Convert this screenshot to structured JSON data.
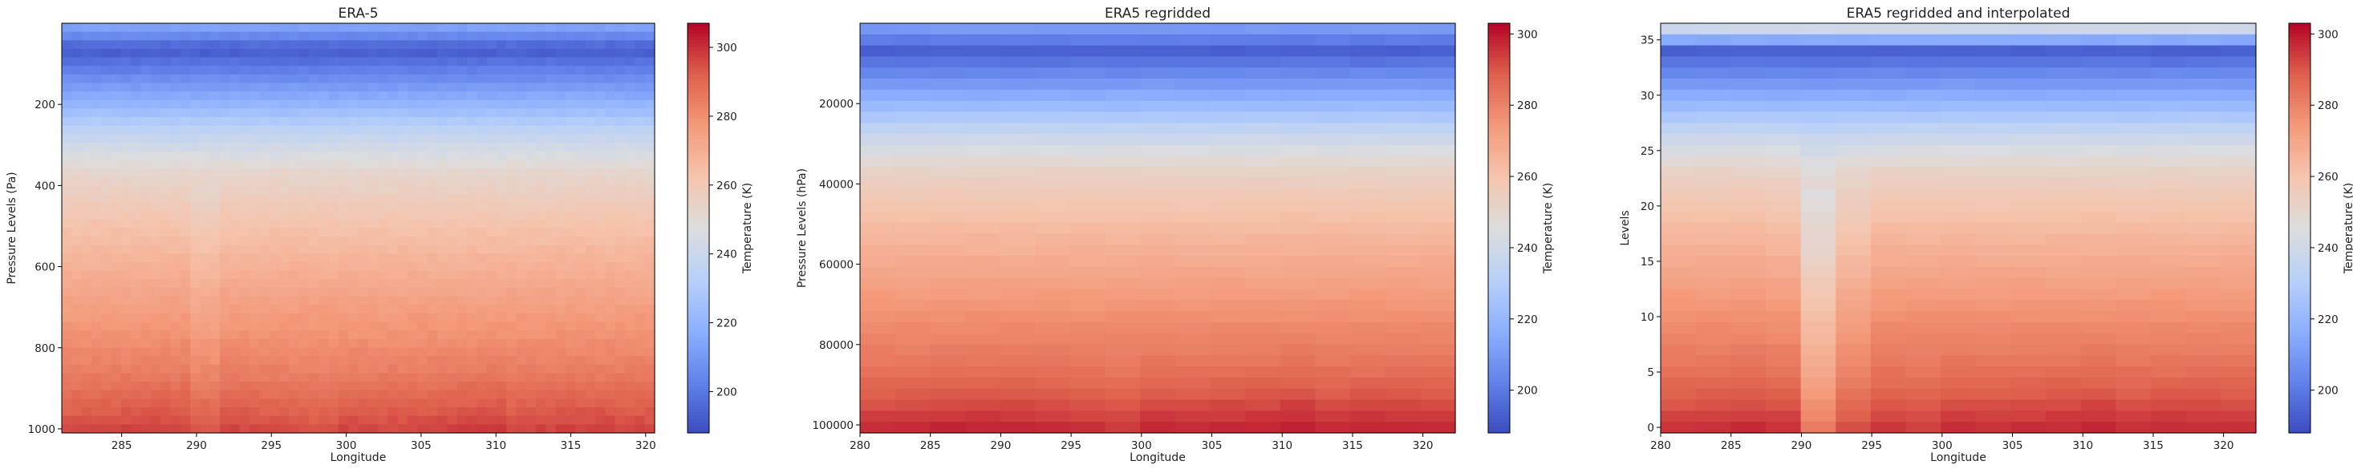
{
  "colorbar_label": "Temperature (K)",
  "chart_data": [
    {
      "type": "heatmap",
      "title": "ERA-5",
      "xlabel": "Longitude",
      "ylabel": "Pressure Levels (Pa)",
      "xlim": [
        281,
        320.6
      ],
      "ylim": [
        1010,
        0
      ],
      "y_inverted": true,
      "xticks": [
        285,
        290,
        295,
        300,
        305,
        310,
        315,
        320
      ],
      "yticks": [
        200,
        400,
        600,
        800,
        1000
      ],
      "ytick_labels": [
        "200",
        "400",
        "600",
        "800",
        "1000"
      ],
      "colorbar": {
        "label": "Temperature (K)",
        "range": [
          188,
          307
        ],
        "ticks": [
          200,
          220,
          240,
          260,
          280,
          300
        ],
        "colormap": "coolwarm"
      },
      "value_profile": {
        "top_K": 217,
        "min_K": 192,
        "near_surface_K": 296
      }
    },
    {
      "type": "heatmap",
      "title": "ERA5 regridded",
      "xlabel": "Longitude",
      "ylabel": "Pressure Levels (hPa)",
      "xlim": [
        280,
        322.3
      ],
      "ylim": [
        102000,
        0
      ],
      "y_inverted": true,
      "xticks": [
        280,
        285,
        290,
        295,
        300,
        305,
        310,
        315,
        320
      ],
      "yticks": [
        20000,
        40000,
        60000,
        80000,
        100000
      ],
      "ytick_labels": [
        "20000",
        "40000",
        "60000",
        "80000",
        "100000"
      ],
      "colorbar": {
        "label": "Temperature (K)",
        "range": [
          188,
          303
        ],
        "ticks": [
          200,
          220,
          240,
          260,
          280,
          300
        ],
        "colormap": "coolwarm"
      },
      "value_profile": {
        "top_K": 214,
        "min_K": 193,
        "near_surface_K": 297
      }
    },
    {
      "type": "heatmap",
      "title": "ERA5 regridded and interpolated",
      "xlabel": "Longitude",
      "ylabel": "Levels",
      "xlim": [
        280,
        322.3
      ],
      "ylim": [
        -0.5,
        36.5
      ],
      "y_inverted": false,
      "xticks": [
        280,
        285,
        290,
        295,
        300,
        305,
        310,
        315,
        320
      ],
      "yticks": [
        0,
        5,
        10,
        15,
        20,
        25,
        30,
        35
      ],
      "ytick_labels": [
        "0",
        "5",
        "10",
        "15",
        "20",
        "25",
        "30",
        "35"
      ],
      "colorbar": {
        "label": "Temperature (K)",
        "range": [
          188,
          303
        ],
        "ticks": [
          200,
          220,
          240,
          260,
          280,
          300
        ],
        "colormap": "coolwarm"
      },
      "value_profile": {
        "top_K": 251,
        "min_K": 193,
        "near_surface_K": 296
      }
    }
  ]
}
